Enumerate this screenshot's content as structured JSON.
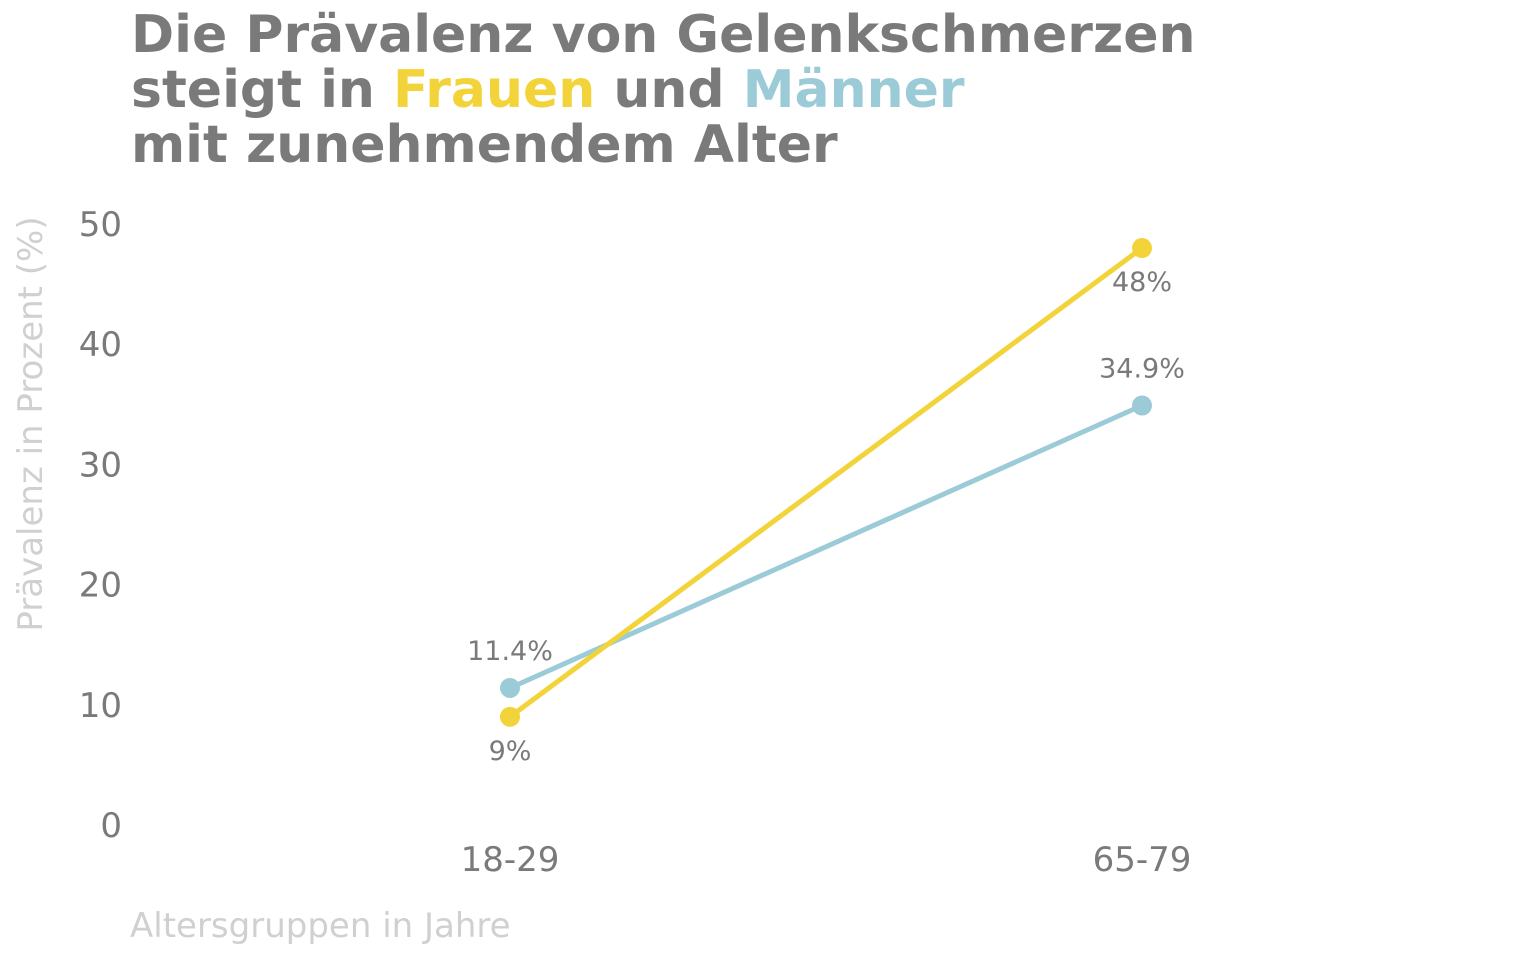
{
  "title": {
    "line1": "Die Prävalenz von Gelenkschmerzen",
    "line2_prefix": "steigt in ",
    "line2_women": "Frauen",
    "line2_middle": " und ",
    "line2_men": "Männer",
    "line3": "mit zunehmendem Alter"
  },
  "chart_data": {
    "type": "line",
    "categories": [
      "18-29",
      "65-79"
    ],
    "series": [
      {
        "name": "Frauen",
        "color": "#f2d33a",
        "values": [
          9,
          48
        ],
        "labels": [
          "9%",
          "48%"
        ],
        "label_side": [
          "below",
          "below"
        ]
      },
      {
        "name": "Männer",
        "color": "#9ccbd8",
        "values": [
          11.4,
          34.9
        ],
        "labels": [
          "11.4%",
          "34.9%"
        ],
        "label_side": [
          "above",
          "above"
        ]
      }
    ],
    "xlabel": "Altersgruppen in Jahre",
    "ylabel": "Prävalenz in Prozent (%)",
    "ylim": [
      0,
      50
    ],
    "yticks": [
      0,
      10,
      20,
      30,
      40,
      50
    ],
    "grid": false,
    "legend": "none"
  }
}
